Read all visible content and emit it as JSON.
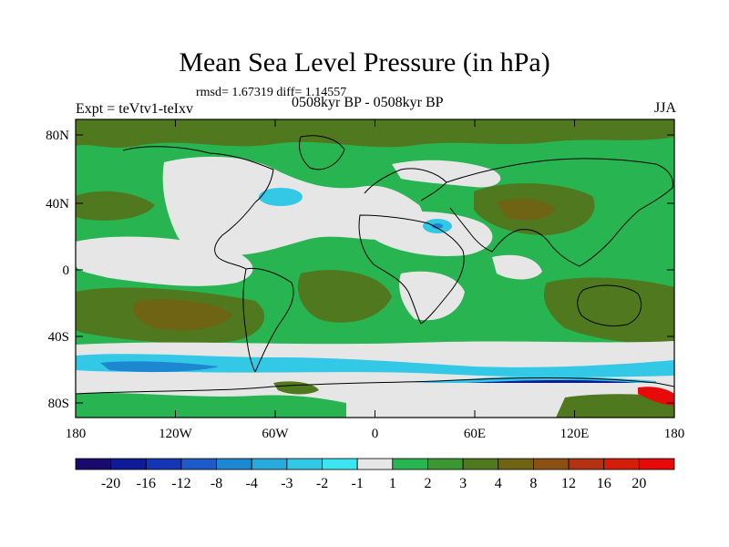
{
  "title": "Mean Sea Level Pressure (in hPa)",
  "stats": "rmsd= 1.67319 diff= 1.14557",
  "expt": "Expt = teVtv1-teIxv",
  "period": "0508kyr BP - 0508kyr BP",
  "season": "JJA",
  "y_ticks": [
    "80N",
    "40N",
    "0",
    "40S",
    "80S"
  ],
  "x_ticks": [
    "180",
    "120W",
    "60W",
    "0",
    "60E",
    "120E",
    "180"
  ],
  "colorbar": {
    "labels": [
      "-20",
      "-16",
      "-12",
      "-8",
      "-4",
      "-3",
      "-2",
      "-1",
      "1",
      "2",
      "3",
      "4",
      "8",
      "12",
      "16",
      "20"
    ],
    "colors": [
      "#1a0a6e",
      "#0f1a96",
      "#1435b4",
      "#1e5ac8",
      "#1e87d2",
      "#28aadc",
      "#32c8e6",
      "#3ce6f0",
      "#e6e6e6",
      "#28b450",
      "#3c9632",
      "#50781e",
      "#6e6414",
      "#8c5014",
      "#b43214",
      "#d21e0a",
      "#e60a0a"
    ]
  },
  "palette": {
    "neutral": "#e6e6e6",
    "green": "#28b450",
    "olive": "#50781e",
    "brown": "#6e6414",
    "cyan": "#32c8e6",
    "blue": "#1e87d2",
    "navy": "#0f1a96"
  }
}
